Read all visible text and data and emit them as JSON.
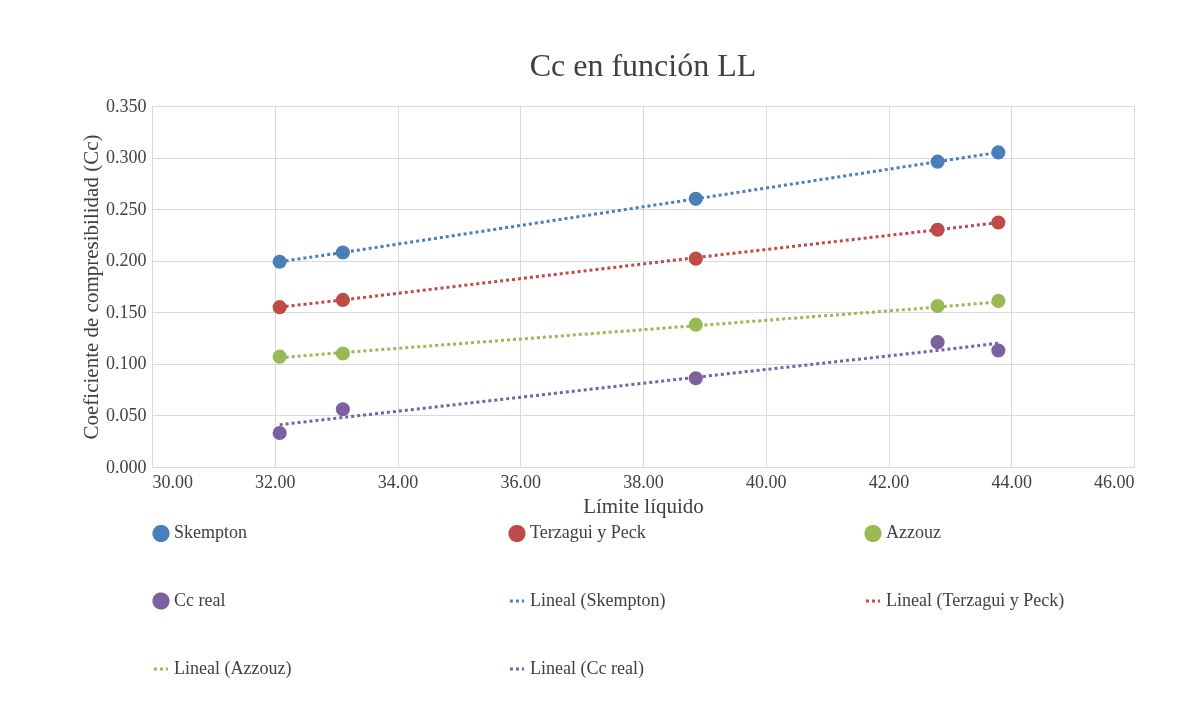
{
  "chart_data": {
    "type": "scatter",
    "title": "Cc en función LL",
    "xlabel": "Límite líquido",
    "ylabel": "Coeficiente de compresibilidad (Cc)",
    "xlim": [
      30,
      46
    ],
    "xticks": [
      {
        "value": 30,
        "label": "30.00"
      },
      {
        "value": 32,
        "label": "32.00"
      },
      {
        "value": 34,
        "label": "34.00"
      },
      {
        "value": 36,
        "label": "36.00"
      },
      {
        "value": 38,
        "label": "38.00"
      },
      {
        "value": 40,
        "label": "40.00"
      },
      {
        "value": 42,
        "label": "42.00"
      },
      {
        "value": 44,
        "label": "44.00"
      },
      {
        "value": 46,
        "label": "46.00"
      }
    ],
    "ylim": [
      0,
      0.35
    ],
    "yticks": [
      {
        "value": 0,
        "label": "0.000"
      },
      {
        "value": 0.05,
        "label": "0.050"
      },
      {
        "value": 0.1,
        "label": "0.100"
      },
      {
        "value": 0.15,
        "label": "0.150"
      },
      {
        "value": 0.2,
        "label": "0.200"
      },
      {
        "value": 0.25,
        "label": "0.250"
      },
      {
        "value": 0.3,
        "label": "0.300"
      },
      {
        "value": 0.35,
        "label": "0.350"
      }
    ],
    "grid": true,
    "legend": "bottom",
    "marker": "circle",
    "x": [
      32.08,
      33.11,
      38.86,
      42.8,
      43.79
    ],
    "series": [
      {
        "name": "Skempton",
        "color": "#4a7ebb",
        "values": [
          0.199,
          0.208,
          0.26,
          0.296,
          0.305
        ]
      },
      {
        "name": "Terzagui y Peck",
        "color": "#be4b48",
        "values": [
          0.155,
          0.162,
          0.202,
          0.23,
          0.237
        ]
      },
      {
        "name": "Azzouz",
        "color": "#98b954",
        "values": [
          0.107,
          0.11,
          0.138,
          0.156,
          0.161
        ]
      },
      {
        "name": "Cc real",
        "color": "#7d60a0",
        "values": [
          0.033,
          0.056,
          0.086,
          0.121,
          0.113
        ]
      },
      {
        "name": "Lineal (Skempton)",
        "type": "line",
        "color": "#4a7ebb",
        "marker": "none",
        "line_style": "dotted",
        "values": [
          0.199,
          0.208,
          0.26,
          0.296,
          0.305
        ]
      },
      {
        "name": "Lineal (Terzagui y Peck)",
        "type": "line",
        "color": "#be4b48",
        "marker": "none",
        "line_style": "dotted",
        "values": [
          0.155,
          0.162,
          0.203,
          0.23,
          0.237
        ]
      },
      {
        "name": "Lineal (Azzouz)",
        "type": "line",
        "color": "#98b954",
        "marker": "none",
        "line_style": "dotted",
        "values": [
          0.106,
          0.111,
          0.137,
          0.155,
          0.16
        ]
      },
      {
        "name": "Lineal (Cc real)",
        "type": "line",
        "color": "#7d60a0",
        "marker": "none",
        "line_style": "dotted",
        "values": [
          0.041,
          0.048,
          0.087,
          0.113,
          0.12
        ]
      }
    ]
  }
}
